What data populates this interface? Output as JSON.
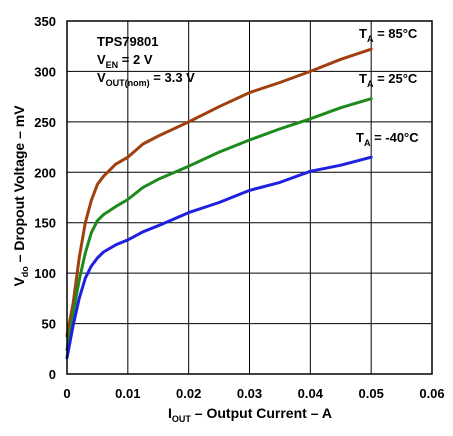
{
  "chart_data": {
    "type": "line",
    "xlim": [
      0,
      0.06
    ],
    "ylim": [
      0,
      350
    ],
    "xticks": [
      0,
      0.01,
      0.02,
      0.03,
      0.04,
      0.05,
      0.06
    ],
    "xtick_labels": [
      "0",
      "0.01",
      "0.02",
      "0.03",
      "0.04",
      "0.05",
      "0.06"
    ],
    "yticks": [
      0,
      50,
      100,
      150,
      200,
      250,
      300,
      350
    ],
    "ytick_labels": [
      "0",
      "50",
      "100",
      "150",
      "200",
      "250",
      "300",
      "350"
    ],
    "grid": true,
    "xlabel": {
      "main": "I",
      "sub": "OUT",
      "rest": " – Output Current – A"
    },
    "ylabel": {
      "main": "V",
      "sub": "do",
      "rest": " – Dropout Voltage – mV"
    },
    "annotations": {
      "part": "TPS79801",
      "ven": {
        "main": "V",
        "sub": "EN",
        "rest": " = 2 V"
      },
      "vout": {
        "main": "V",
        "sub": "OUT(nom)",
        "rest": " = 3.3 V"
      }
    },
    "series": [
      {
        "name": {
          "main": "T",
          "sub": "A",
          "rest": " = 85°C"
        },
        "color": "#a0400f",
        "points": [
          [
            0,
            38
          ],
          [
            0.001,
            70
          ],
          [
            0.002,
            115
          ],
          [
            0.003,
            150
          ],
          [
            0.004,
            172
          ],
          [
            0.005,
            188
          ],
          [
            0.006,
            196
          ],
          [
            0.008,
            208
          ],
          [
            0.01,
            215
          ],
          [
            0.0125,
            228
          ],
          [
            0.015,
            236
          ],
          [
            0.02,
            250
          ],
          [
            0.025,
            265
          ],
          [
            0.03,
            279
          ],
          [
            0.035,
            289
          ],
          [
            0.04,
            300
          ],
          [
            0.045,
            312
          ],
          [
            0.05,
            322
          ]
        ]
      },
      {
        "name": {
          "main": "T",
          "sub": "A",
          "rest": " = 25°C"
        },
        "color": "#1e8a1e",
        "points": [
          [
            0,
            24
          ],
          [
            0.001,
            60
          ],
          [
            0.002,
            93
          ],
          [
            0.003,
            120
          ],
          [
            0.004,
            140
          ],
          [
            0.005,
            152
          ],
          [
            0.006,
            158
          ],
          [
            0.008,
            166
          ],
          [
            0.01,
            173
          ],
          [
            0.0125,
            185
          ],
          [
            0.015,
            193
          ],
          [
            0.02,
            206
          ],
          [
            0.025,
            220
          ],
          [
            0.03,
            232
          ],
          [
            0.035,
            243
          ],
          [
            0.04,
            253
          ],
          [
            0.045,
            264
          ],
          [
            0.05,
            273
          ]
        ]
      },
      {
        "name": {
          "main": "T",
          "sub": "A",
          "rest": " = -40°C"
        },
        "color": "#2020e0",
        "points": [
          [
            0,
            16
          ],
          [
            0.001,
            48
          ],
          [
            0.002,
            75
          ],
          [
            0.003,
            95
          ],
          [
            0.004,
            107
          ],
          [
            0.005,
            115
          ],
          [
            0.006,
            121
          ],
          [
            0.008,
            128
          ],
          [
            0.01,
            133
          ],
          [
            0.0125,
            141
          ],
          [
            0.015,
            147
          ],
          [
            0.02,
            160
          ],
          [
            0.025,
            170
          ],
          [
            0.03,
            182
          ],
          [
            0.035,
            190
          ],
          [
            0.04,
            201
          ],
          [
            0.045,
            207
          ],
          [
            0.05,
            215
          ]
        ]
      }
    ]
  }
}
